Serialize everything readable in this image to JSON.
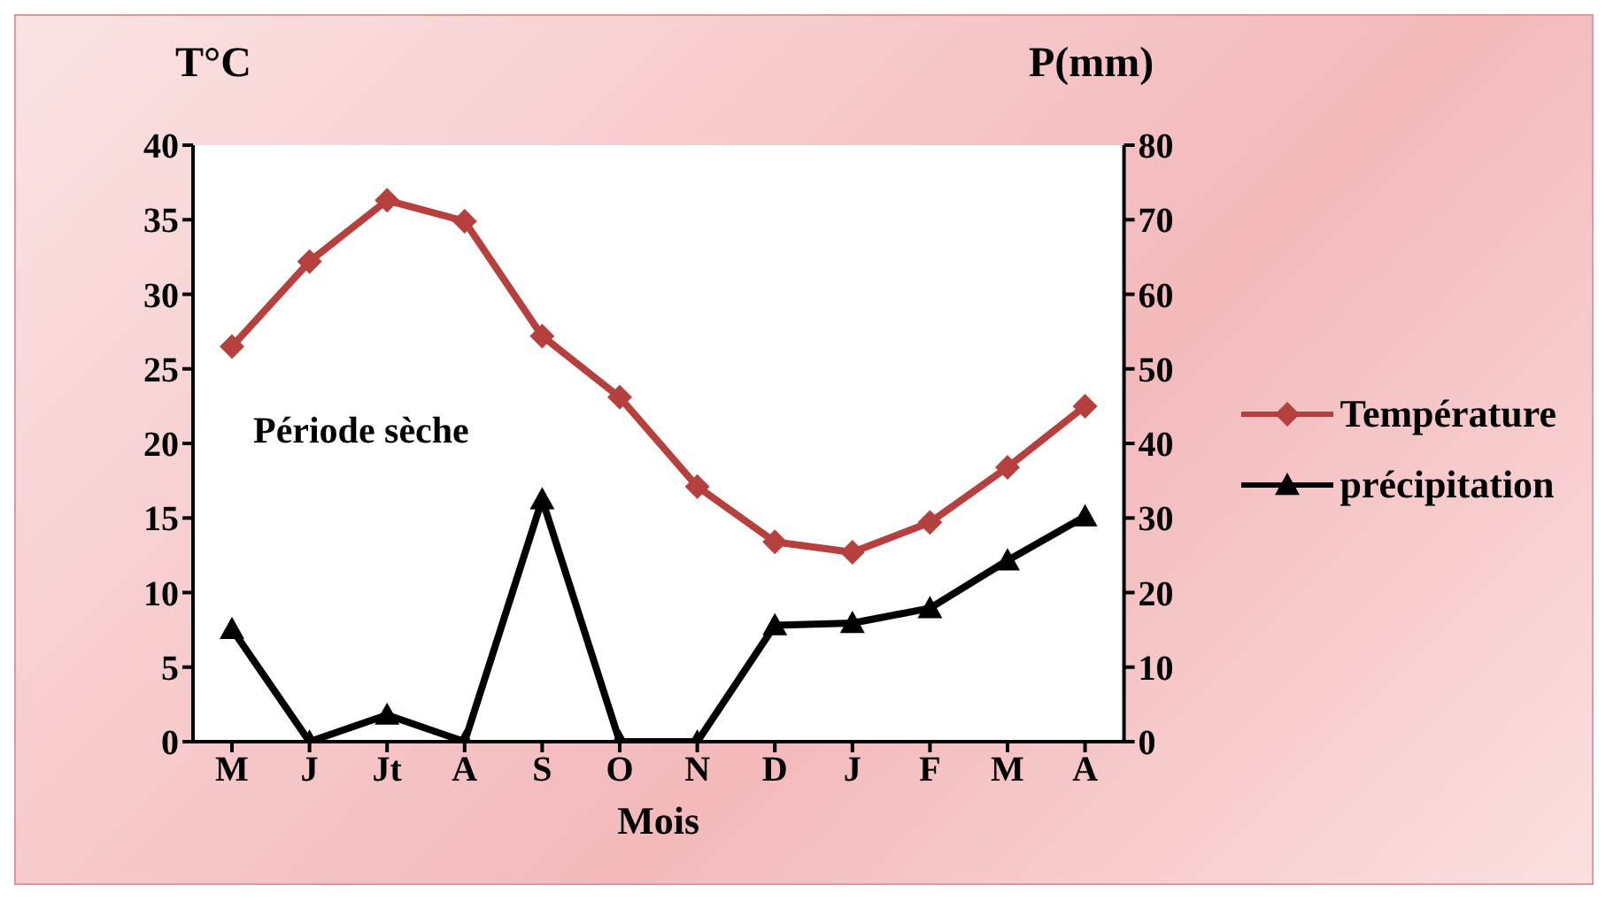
{
  "chart_data": {
    "type": "line",
    "ylabel": "T°C",
    "y2label": "P(mm)",
    "xlabel": "Mois",
    "categories": [
      "M",
      "J",
      "Jt",
      "A",
      "S",
      "O",
      "N",
      "D",
      "J",
      "F",
      "M",
      "A"
    ],
    "series": [
      {
        "name": "Température",
        "color": "#b5403e",
        "marker": "diamond",
        "values": [
          26.5,
          32.2,
          36.3,
          34.9,
          27.2,
          23.1,
          17.1,
          13.4,
          12.7,
          14.7,
          18.4,
          22.5
        ]
      },
      {
        "name": "précipitation",
        "color": "#000000",
        "marker": "triangle",
        "axis": "y2",
        "values": [
          15.1,
          0,
          3.6,
          0,
          32.5,
          0,
          0,
          15.6,
          15.9,
          17.9,
          24.3,
          30.2
        ]
      }
    ],
    "ylim": [
      0,
      40
    ],
    "yticks": [
      0,
      5,
      10,
      15,
      20,
      25,
      30,
      35,
      40
    ],
    "y2lim": [
      0,
      80
    ],
    "y2ticks": [
      0,
      10,
      20,
      30,
      40,
      50,
      60,
      70,
      80
    ],
    "annotations": [
      "Période sèche"
    ],
    "legend": "right",
    "grid": false
  }
}
